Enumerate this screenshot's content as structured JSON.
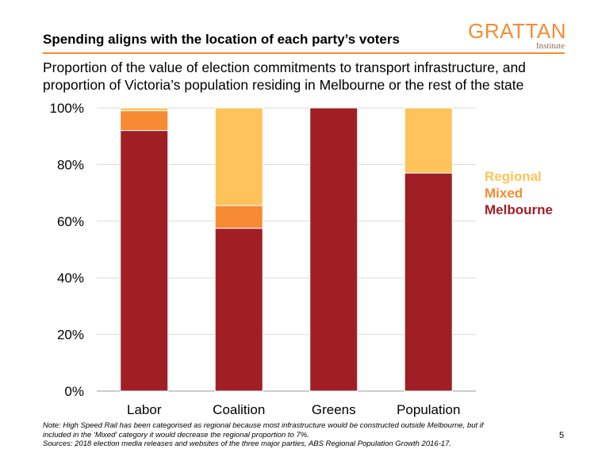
{
  "header": {
    "title": "Spending aligns with the location of each party’s voters",
    "subtitle": "Proportion of the value of election commitments to transport infrastructure, and proportion of Victoria’s population residing in Melbourne or the rest of the state",
    "logo_main": "GRATTAN",
    "logo_sub": "Institute"
  },
  "colors": {
    "accent": "#F68B33",
    "melbourne": "#A01F25",
    "mixed": "#F68B33",
    "regional": "#FEC35A"
  },
  "chart_data": {
    "type": "bar",
    "stacked": true,
    "categories": [
      "Labor",
      "Coalition",
      "Greens",
      "Population"
    ],
    "series": [
      {
        "name": "Melbourne",
        "color": "#A01F25",
        "values": [
          92,
          57.5,
          100,
          77
        ]
      },
      {
        "name": "Mixed",
        "color": "#F68B33",
        "values": [
          7,
          8,
          0,
          0
        ]
      },
      {
        "name": "Regional",
        "color": "#FEC35A",
        "values": [
          1,
          34.5,
          0,
          23
        ]
      }
    ],
    "ylim": [
      0,
      100
    ],
    "yticks": [
      "0%",
      "20%",
      "40%",
      "60%",
      "80%",
      "100%"
    ],
    "ytick_values": [
      0,
      20,
      40,
      60,
      80,
      100
    ],
    "grid": true,
    "legend": {
      "placement": "right",
      "order": [
        "Regional",
        "Mixed",
        "Melbourne"
      ]
    }
  },
  "footer": {
    "note_line1": "Note: High Speed Rail has been categorised as regional because most infrastructure would be constructed outside Melbourne, but if",
    "note_line2": "included in the ‘Mixed’ category it would decrease the regional proportion to 7%.",
    "sources": "Sources: 2018 election media releases and websites of the three major parties, ABS Regional Population Growth 2016-17.",
    "page_number": "5"
  }
}
